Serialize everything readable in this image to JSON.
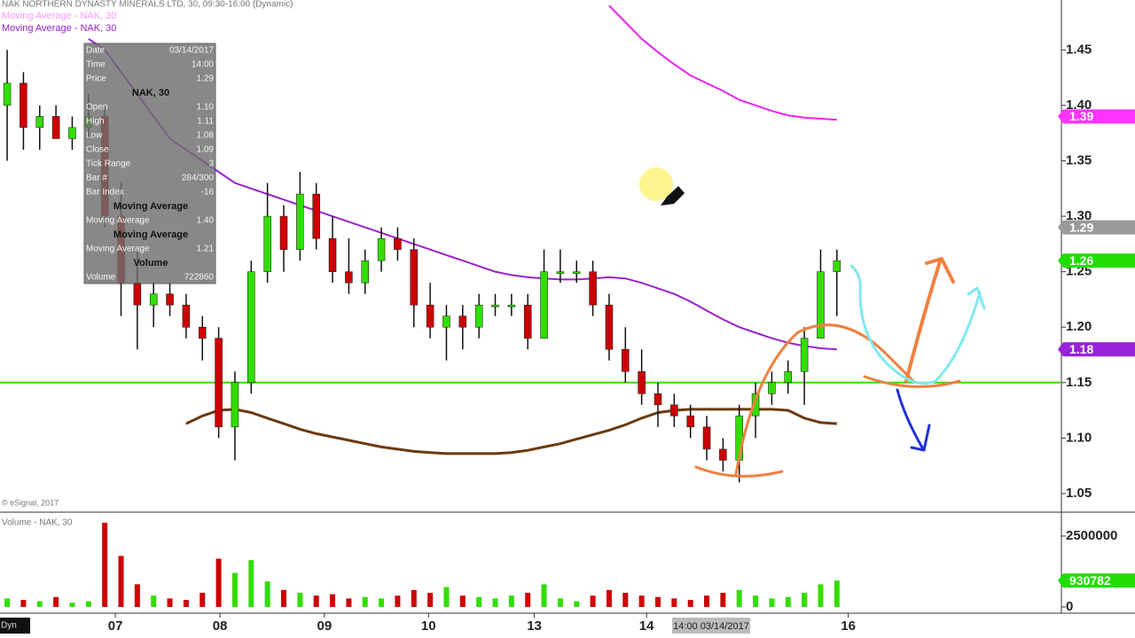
{
  "header": {
    "title": "NAK NORTHERN DYNASTY MINERALS LTD, 30, 09:30-16:00 (Dynamic)",
    "copyright": "© eSignal, 2017",
    "cursor_time": "14:00 03/14/2017",
    "mode": "Dyn"
  },
  "info_box": {
    "rows": [
      [
        "Date",
        "03/14/2017"
      ],
      [
        "Time",
        "14:00"
      ],
      [
        "Price",
        "1.29"
      ],
      [
        "",
        "NAK, 30"
      ],
      [
        "Open",
        "1.10"
      ],
      [
        "High",
        "1.11"
      ],
      [
        "Low",
        "1.08"
      ],
      [
        "Close",
        "1.09"
      ],
      [
        "Tick Range",
        "3"
      ],
      [
        "Bar #",
        "284/300"
      ],
      [
        "Bar Index",
        "-16"
      ],
      [
        "",
        "Moving Average"
      ],
      [
        "Moving Average",
        "1.40"
      ],
      [
        "",
        "Moving Average"
      ],
      [
        "Moving Average",
        "1.21"
      ],
      [
        "",
        "Volume"
      ],
      [
        "Volume",
        "722860"
      ]
    ]
  },
  "chart_data": {
    "type": "candlestick",
    "open": [
      1.4,
      1.42,
      1.38,
      1.39,
      1.37,
      1.38,
      1.39,
      1.3,
      1.24,
      1.22,
      1.23,
      1.22,
      1.2,
      1.19,
      1.11,
      1.15,
      1.25,
      1.3,
      1.27,
      1.32,
      1.28,
      1.25,
      1.24,
      1.26,
      1.28,
      1.27,
      1.22,
      1.2,
      1.21,
      1.2,
      1.22,
      1.22,
      1.22,
      1.19,
      1.25,
      1.25,
      1.25,
      1.22,
      1.18,
      1.16,
      1.14,
      1.13,
      1.12,
      1.11,
      1.09,
      1.08,
      1.12,
      1.14,
      1.15,
      1.16,
      1.19,
      1.25
    ],
    "high": [
      1.45,
      1.43,
      1.4,
      1.4,
      1.39,
      1.41,
      1.4,
      1.33,
      1.27,
      1.24,
      1.24,
      1.23,
      1.21,
      1.2,
      1.16,
      1.26,
      1.33,
      1.31,
      1.34,
      1.33,
      1.3,
      1.28,
      1.27,
      1.29,
      1.29,
      1.28,
      1.24,
      1.22,
      1.22,
      1.23,
      1.23,
      1.23,
      1.23,
      1.27,
      1.27,
      1.26,
      1.26,
      1.23,
      1.2,
      1.18,
      1.15,
      1.14,
      1.13,
      1.12,
      1.1,
      1.13,
      1.15,
      1.16,
      1.17,
      1.2,
      1.27,
      1.27
    ],
    "low": [
      1.35,
      1.36,
      1.36,
      1.37,
      1.36,
      1.37,
      1.29,
      1.21,
      1.18,
      1.2,
      1.21,
      1.19,
      1.17,
      1.1,
      1.08,
      1.14,
      1.24,
      1.25,
      1.26,
      1.27,
      1.24,
      1.23,
      1.23,
      1.25,
      1.26,
      1.2,
      1.19,
      1.17,
      1.18,
      1.19,
      1.21,
      1.21,
      1.18,
      1.19,
      1.24,
      1.24,
      1.21,
      1.17,
      1.15,
      1.13,
      1.11,
      1.11,
      1.1,
      1.08,
      1.07,
      1.06,
      1.1,
      1.13,
      1.14,
      1.13,
      1.19,
      1.21
    ],
    "close": [
      1.42,
      1.38,
      1.39,
      1.37,
      1.38,
      1.39,
      1.3,
      1.24,
      1.22,
      1.23,
      1.22,
      1.2,
      1.19,
      1.11,
      1.15,
      1.25,
      1.3,
      1.27,
      1.32,
      1.28,
      1.25,
      1.24,
      1.26,
      1.28,
      1.27,
      1.22,
      1.2,
      1.21,
      1.2,
      1.22,
      1.22,
      1.22,
      1.19,
      1.25,
      1.25,
      1.25,
      1.22,
      1.18,
      1.16,
      1.14,
      1.13,
      1.12,
      1.11,
      1.09,
      1.08,
      1.12,
      1.14,
      1.15,
      1.16,
      1.19,
      1.25,
      1.26
    ],
    "up_color": "#33dd00",
    "down_color": "#cc0000",
    "xlim": [
      -0.44,
      64.8
    ],
    "xticks": [
      {
        "value": 6.65,
        "label": "07"
      },
      {
        "value": 13.08,
        "label": "08"
      },
      {
        "value": 19.5,
        "label": "09"
      },
      {
        "value": 25.9,
        "label": "10"
      },
      {
        "value": 32.4,
        "label": "13"
      },
      {
        "value": 39.3,
        "label": "14"
      },
      {
        "value": 51.7,
        "label": "16"
      }
    ],
    "ylim": [
      1.034,
      1.495
    ],
    "yticks": [
      1.05,
      {
        "value": 1.1,
        "label": "1.10"
      },
      1.15,
      {
        "value": 1.2,
        "label": "1.20"
      },
      1.25,
      {
        "value": 1.3,
        "label": "1.30"
      },
      1.35,
      {
        "value": 1.4,
        "label": "1.40"
      },
      1.45
    ],
    "series": [
      {
        "name": "Moving Average - NAK, 30",
        "color": "#ee22ee",
        "values": [
          null,
          null,
          null,
          null,
          null,
          null,
          null,
          null,
          null,
          null,
          null,
          null,
          null,
          null,
          null,
          null,
          null,
          null,
          null,
          null,
          null,
          null,
          null,
          null,
          null,
          null,
          null,
          null,
          null,
          null,
          null,
          null,
          null,
          null,
          null,
          null,
          null,
          1.49,
          1.475,
          1.46,
          1.448,
          1.437,
          1.427,
          1.42,
          1.413,
          1.405,
          1.4,
          1.395,
          1.391,
          1.389,
          1.388,
          1.387
        ]
      },
      {
        "name": "Moving Average - NAK, 30",
        "color": "#9922cc",
        "values": [
          null,
          null,
          null,
          null,
          null,
          1.46,
          1.45,
          1.43,
          1.41,
          1.39,
          1.37,
          1.36,
          1.35,
          1.34,
          1.33,
          1.325,
          1.32,
          1.315,
          1.31,
          1.305,
          1.3,
          1.295,
          1.29,
          1.285,
          1.28,
          1.275,
          1.27,
          1.265,
          1.26,
          1.255,
          1.25,
          1.247,
          1.245,
          1.244,
          1.243,
          1.243,
          1.244,
          1.245,
          1.244,
          1.24,
          1.235,
          1.23,
          1.223,
          1.215,
          1.207,
          1.2,
          1.195,
          1.19,
          1.186,
          1.183,
          1.181,
          1.18
        ]
      },
      {
        "color": "#6b3a12",
        "values": [
          null,
          null,
          null,
          null,
          null,
          null,
          null,
          null,
          null,
          null,
          null,
          1.113,
          1.12,
          1.125,
          1.126,
          1.123,
          1.118,
          1.113,
          1.108,
          1.104,
          1.101,
          1.098,
          1.095,
          1.092,
          1.09,
          1.088,
          1.087,
          1.086,
          1.086,
          1.086,
          1.086,
          1.087,
          1.089,
          1.092,
          1.095,
          1.099,
          1.103,
          1.107,
          1.112,
          1.118,
          1.123,
          1.125,
          1.126,
          1.126,
          1.126,
          1.126,
          1.126,
          1.126,
          1.125,
          1.118,
          1.114,
          1.113
        ]
      }
    ],
    "hline": {
      "value": 1.15,
      "color": "#33dd00"
    },
    "price_tags": [
      {
        "value": 1.39,
        "color": "#ff33ff"
      },
      {
        "value": 1.29,
        "color": "#9a9a9a"
      },
      {
        "value": 1.26,
        "color": "#22dd00"
      },
      {
        "value": 1.18,
        "color": "#9922dd"
      }
    ],
    "volume": {
      "title": "Volume - NAK, 30",
      "values": [
        300000,
        250000,
        200000,
        350000,
        150000,
        200000,
        2970000,
        1800000,
        800000,
        400000,
        300000,
        250000,
        500000,
        1700000,
        1200000,
        1650000,
        900000,
        600000,
        500000,
        400000,
        450000,
        300000,
        350000,
        300000,
        400000,
        600000,
        500000,
        700000,
        400000,
        350000,
        300000,
        400000,
        500000,
        800000,
        300000,
        200000,
        400000,
        600000,
        500000,
        400000,
        350000,
        300000,
        250000,
        400000,
        500000,
        600000,
        400000,
        300000,
        350000,
        500000,
        800000,
        930782
      ],
      "ylim": [
        -220000,
        3280000
      ],
      "yticks": [
        0,
        2500000
      ],
      "tag": {
        "value": 930782,
        "color": "#22dd00"
      }
    }
  }
}
